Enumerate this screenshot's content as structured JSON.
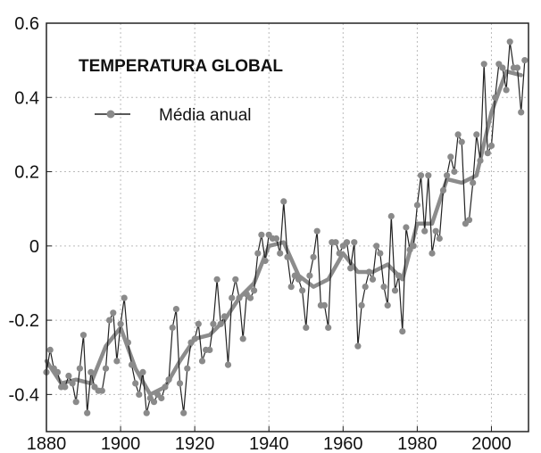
{
  "chart_data": {
    "type": "line",
    "title": "TEMPERATURA GLOBAL",
    "xlabel": "",
    "ylabel": "",
    "xlim": [
      1880,
      2010
    ],
    "ylim": [
      -0.5,
      0.6
    ],
    "x_ticks": [
      1880,
      1900,
      1920,
      1940,
      1960,
      1980,
      2000
    ],
    "y_ticks": [
      -0.4,
      -0.2,
      0,
      0.2,
      0.4,
      0.6
    ],
    "y_tick_labels": [
      "-0.4",
      "-0.2",
      "0",
      "0.2",
      "0.4",
      "0.6"
    ],
    "grid": true,
    "legend": {
      "position": "top-left"
    },
    "colors": {
      "annual_line": "#222222",
      "annual_marker": "#8a8a8a",
      "smoothed_line": "#8c8c8c",
      "grid": "#bbbbbb",
      "frame": "#222222"
    },
    "series": [
      {
        "name": "Média anual",
        "style": "line-markers",
        "x": [
          1880,
          1881,
          1882,
          1883,
          1884,
          1885,
          1886,
          1887,
          1888,
          1889,
          1890,
          1891,
          1892,
          1893,
          1894,
          1895,
          1896,
          1897,
          1898,
          1899,
          1900,
          1901,
          1902,
          1903,
          1904,
          1905,
          1906,
          1907,
          1908,
          1909,
          1910,
          1911,
          1912,
          1913,
          1914,
          1915,
          1916,
          1917,
          1918,
          1919,
          1920,
          1921,
          1922,
          1923,
          1924,
          1925,
          1926,
          1927,
          1928,
          1929,
          1930,
          1931,
          1932,
          1933,
          1934,
          1935,
          1936,
          1937,
          1938,
          1939,
          1940,
          1941,
          1942,
          1943,
          1944,
          1945,
          1946,
          1947,
          1948,
          1949,
          1950,
          1951,
          1952,
          1953,
          1954,
          1955,
          1956,
          1957,
          1958,
          1959,
          1960,
          1961,
          1962,
          1963,
          1964,
          1965,
          1966,
          1967,
          1968,
          1969,
          1970,
          1971,
          1972,
          1973,
          1974,
          1975,
          1976,
          1977,
          1978,
          1979,
          1980,
          1981,
          1982,
          1983,
          1984,
          1985,
          1986,
          1987,
          1988,
          1989,
          1990,
          1991,
          1992,
          1993,
          1994,
          1995,
          1996,
          1997,
          1998,
          1999,
          2000,
          2001,
          2002,
          2003,
          2004,
          2005,
          2006,
          2007,
          2008,
          2009
        ],
        "values": [
          -0.34,
          -0.28,
          -0.33,
          -0.34,
          -0.38,
          -0.38,
          -0.35,
          -0.37,
          -0.42,
          -0.33,
          -0.24,
          -0.45,
          -0.34,
          -0.38,
          -0.39,
          -0.39,
          -0.33,
          -0.2,
          -0.18,
          -0.31,
          -0.21,
          -0.14,
          -0.26,
          -0.32,
          -0.37,
          -0.4,
          -0.34,
          -0.45,
          -0.41,
          -0.42,
          -0.4,
          -0.41,
          -0.38,
          -0.36,
          -0.22,
          -0.17,
          -0.37,
          -0.45,
          -0.33,
          -0.26,
          -0.25,
          -0.21,
          -0.31,
          -0.28,
          -0.28,
          -0.21,
          -0.09,
          -0.21,
          -0.19,
          -0.32,
          -0.14,
          -0.09,
          -0.14,
          -0.25,
          -0.13,
          -0.14,
          -0.12,
          -0.02,
          0.03,
          -0.04,
          0.03,
          0.02,
          0.02,
          -0.02,
          0.12,
          -0.03,
          -0.11,
          -0.08,
          -0.09,
          -0.12,
          -0.22,
          -0.08,
          -0.03,
          0.04,
          -0.16,
          -0.16,
          -0.22,
          0.01,
          0.01,
          -0.02,
          0.0,
          0.01,
          -0.06,
          0.01,
          -0.27,
          -0.16,
          -0.11,
          -0.07,
          -0.09,
          0.0,
          -0.02,
          -0.11,
          -0.16,
          0.08,
          -0.12,
          -0.08,
          -0.23,
          0.05,
          -0.01,
          0.0,
          0.11,
          0.19,
          0.04,
          0.19,
          -0.02,
          0.04,
          0.02,
          0.15,
          0.19,
          0.24,
          0.2,
          0.3,
          0.28,
          0.06,
          0.07,
          0.17,
          0.3,
          0.23,
          0.49,
          0.25,
          0.27,
          0.4,
          0.49,
          0.48,
          0.42,
          0.55,
          0.48,
          0.48,
          0.36,
          0.5
        ]
      },
      {
        "name": "",
        "style": "smoothed",
        "x": [
          1880,
          1884,
          1888,
          1892,
          1896,
          1900,
          1904,
          1908,
          1912,
          1916,
          1920,
          1924,
          1928,
          1932,
          1936,
          1940,
          1944,
          1948,
          1952,
          1956,
          1960,
          1964,
          1968,
          1972,
          1976,
          1980,
          1984,
          1988,
          1992,
          1996,
          2000,
          2004,
          2008
        ],
        "values": [
          -0.31,
          -0.37,
          -0.36,
          -0.37,
          -0.27,
          -0.22,
          -0.33,
          -0.4,
          -0.38,
          -0.31,
          -0.25,
          -0.24,
          -0.2,
          -0.14,
          -0.1,
          0.0,
          0.01,
          -0.08,
          -0.11,
          -0.09,
          -0.02,
          -0.07,
          -0.07,
          -0.05,
          -0.09,
          0.06,
          0.06,
          0.18,
          0.17,
          0.19,
          0.36,
          0.47,
          0.46
        ]
      }
    ]
  }
}
